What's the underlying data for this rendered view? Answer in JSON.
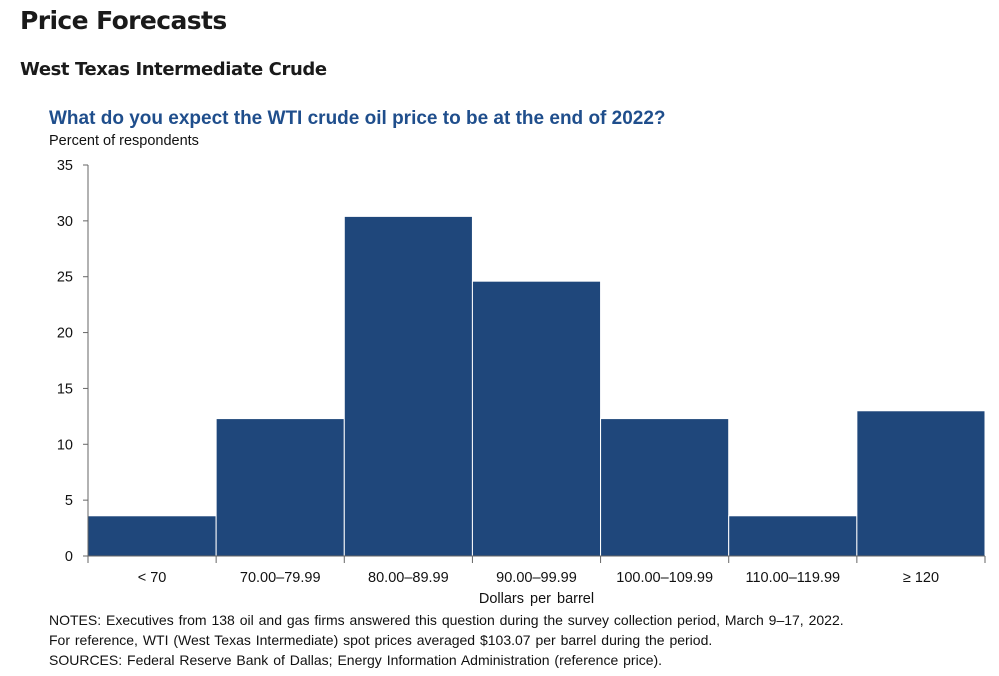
{
  "page": {
    "title": "Price Forecasts",
    "section_title": "West Texas Intermediate Crude"
  },
  "notes": {
    "line1": "NOTES: Executives from 138 oil and gas firms answered this question during the survey collection period, March 9–17, 2022.",
    "line2": "For reference, WTI (West Texas Intermediate) spot prices averaged $103.07 per barrel during the period.",
    "line3": "SOURCES: Federal Reserve Bank of Dallas; Energy Information Administration (reference price)."
  },
  "chart_data": {
    "type": "bar",
    "title": "What do you expect the WTI crude oil price to be at the end of 2022?",
    "ylabel": "Percent of respondents",
    "xlabel": "Dollars per barrel",
    "categories": [
      "< 70",
      "70.00–79.99",
      "80.00–89.99",
      "90.00–99.99",
      "100.00–109.99",
      "110.00–119.99",
      "≥ 120"
    ],
    "values": [
      3.6,
      12.3,
      30.4,
      24.6,
      12.3,
      3.6,
      13.0
    ],
    "ylim": [
      0,
      35
    ],
    "yticks": [
      0,
      5,
      10,
      15,
      20,
      25,
      30,
      35
    ],
    "grid": false,
    "legend": "none",
    "bar_color": "#1f477b",
    "title_color": "#1f4e8c"
  }
}
